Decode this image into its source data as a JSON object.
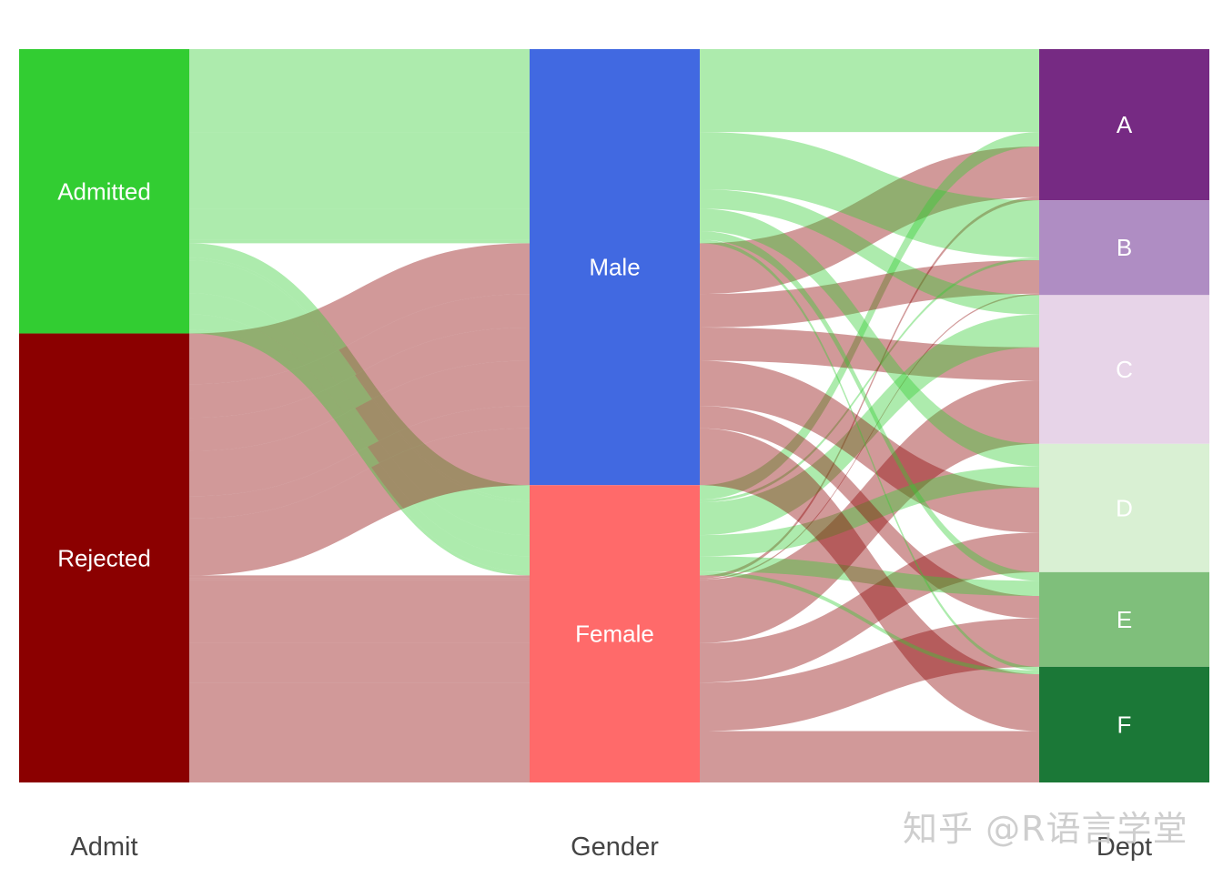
{
  "chart_data": {
    "type": "alluvial",
    "title": "",
    "axes": [
      "Admit",
      "Gender",
      "Dept"
    ],
    "strata": {
      "Admit": [
        {
          "name": "Admitted",
          "color": "#32CD32"
        },
        {
          "name": "Rejected",
          "color": "#8B0000"
        }
      ],
      "Gender": [
        {
          "name": "Male",
          "color": "#4169E1"
        },
        {
          "name": "Female",
          "color": "#FF6A6A"
        }
      ],
      "Dept": [
        {
          "name": "A",
          "color": "#762A83"
        },
        {
          "name": "B",
          "color": "#AF8DC3"
        },
        {
          "name": "C",
          "color": "#E7D4E8"
        },
        {
          "name": "D",
          "color": "#D9F0D3"
        },
        {
          "name": "E",
          "color": "#7FBF7B"
        },
        {
          "name": "F",
          "color": "#1B7837"
        }
      ]
    },
    "flow_colors": {
      "Admitted": "#32CD32",
      "Rejected": "#8B0000"
    },
    "flows": [
      {
        "admit": "Admitted",
        "gender": "Male",
        "dept": "A",
        "freq": 512
      },
      {
        "admit": "Rejected",
        "gender": "Male",
        "dept": "A",
        "freq": 313
      },
      {
        "admit": "Admitted",
        "gender": "Female",
        "dept": "A",
        "freq": 89
      },
      {
        "admit": "Rejected",
        "gender": "Female",
        "dept": "A",
        "freq": 19
      },
      {
        "admit": "Admitted",
        "gender": "Male",
        "dept": "B",
        "freq": 353
      },
      {
        "admit": "Rejected",
        "gender": "Male",
        "dept": "B",
        "freq": 207
      },
      {
        "admit": "Admitted",
        "gender": "Female",
        "dept": "B",
        "freq": 17
      },
      {
        "admit": "Rejected",
        "gender": "Female",
        "dept": "B",
        "freq": 8
      },
      {
        "admit": "Admitted",
        "gender": "Male",
        "dept": "C",
        "freq": 120
      },
      {
        "admit": "Rejected",
        "gender": "Male",
        "dept": "C",
        "freq": 205
      },
      {
        "admit": "Admitted",
        "gender": "Female",
        "dept": "C",
        "freq": 202
      },
      {
        "admit": "Rejected",
        "gender": "Female",
        "dept": "C",
        "freq": 391
      },
      {
        "admit": "Admitted",
        "gender": "Male",
        "dept": "D",
        "freq": 138
      },
      {
        "admit": "Rejected",
        "gender": "Male",
        "dept": "D",
        "freq": 279
      },
      {
        "admit": "Admitted",
        "gender": "Female",
        "dept": "D",
        "freq": 131
      },
      {
        "admit": "Rejected",
        "gender": "Female",
        "dept": "D",
        "freq": 244
      },
      {
        "admit": "Admitted",
        "gender": "Male",
        "dept": "E",
        "freq": 53
      },
      {
        "admit": "Rejected",
        "gender": "Male",
        "dept": "E",
        "freq": 138
      },
      {
        "admit": "Admitted",
        "gender": "Female",
        "dept": "E",
        "freq": 94
      },
      {
        "admit": "Rejected",
        "gender": "Female",
        "dept": "E",
        "freq": 299
      },
      {
        "admit": "Admitted",
        "gender": "Male",
        "dept": "F",
        "freq": 22
      },
      {
        "admit": "Rejected",
        "gender": "Male",
        "dept": "F",
        "freq": 351
      },
      {
        "admit": "Admitted",
        "gender": "Female",
        "dept": "F",
        "freq": 24
      },
      {
        "admit": "Rejected",
        "gender": "Female",
        "dept": "F",
        "freq": 317
      }
    ],
    "legend": "none",
    "grid": false
  },
  "watermark": "知乎 @R语言学堂"
}
